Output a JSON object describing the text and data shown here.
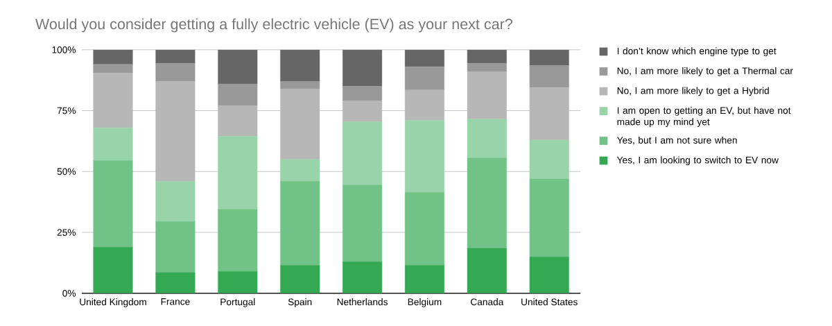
{
  "chart_data": {
    "type": "bar",
    "stacked": true,
    "title": "Would you consider getting a fully electric vehicle (EV) as your next car?",
    "categories": [
      "United Kingdom",
      "France",
      "Portugal",
      "Spain",
      "Netherlands",
      "Belgium",
      "Canada",
      "United States"
    ],
    "series": [
      {
        "name": "Yes, I am looking to switch to EV now",
        "color": "#34a853",
        "values": [
          19,
          8.5,
          9,
          11.5,
          13,
          11.5,
          18.5,
          15
        ]
      },
      {
        "name": "Yes, but I am not sure when",
        "color": "#71c287",
        "values": [
          35.5,
          21,
          25.5,
          34.5,
          31.5,
          30,
          37,
          32
        ]
      },
      {
        "name": "I am open to getting an EV, but have not made up my mind yet",
        "color": "#99d3a9",
        "values": [
          13.5,
          16.5,
          30,
          9,
          26,
          29.5,
          16,
          16
        ]
      },
      {
        "name": "No, I am more likely to get a Hybrid",
        "color": "#b7b7b7",
        "values": [
          22.5,
          41,
          12.5,
          29,
          8.5,
          12.5,
          19.5,
          21.5
        ]
      },
      {
        "name": "No, I am more likely to get a Thermal car",
        "color": "#999999",
        "values": [
          3.5,
          7.5,
          9,
          3,
          6,
          9.5,
          3.5,
          9
        ]
      },
      {
        "name": "I don’t know which engine type to get",
        "color": "#666666",
        "values": [
          6,
          5.5,
          14,
          13,
          15,
          7,
          5.5,
          6.5
        ]
      }
    ],
    "ylim": [
      0,
      100
    ],
    "yticks": [
      {
        "value": 0,
        "label": "0%"
      },
      {
        "value": 25,
        "label": "25%"
      },
      {
        "value": 50,
        "label": "50%"
      },
      {
        "value": 75,
        "label": "75%"
      },
      {
        "value": 100,
        "label": "100%"
      }
    ],
    "grid": "y",
    "legend": "right"
  }
}
